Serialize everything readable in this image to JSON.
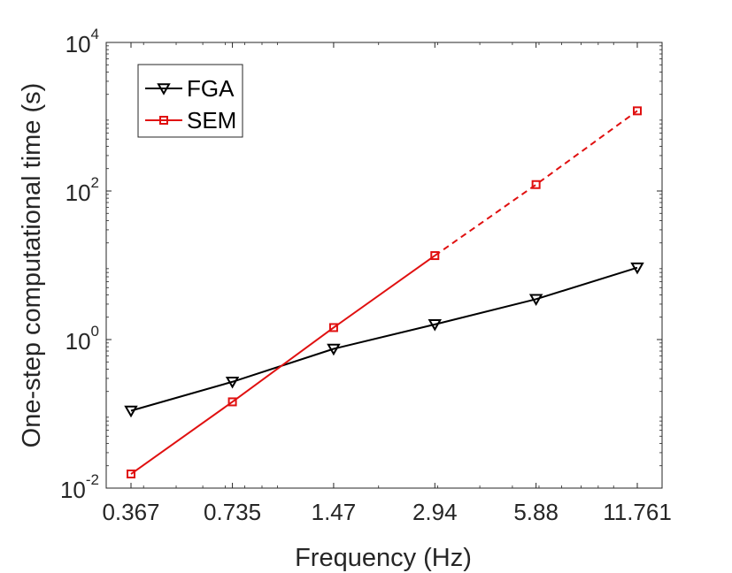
{
  "chart_data": {
    "type": "line",
    "yscale": "log",
    "xscale": "log",
    "xlabel": "Frequency (Hz)",
    "ylabel": "One-step computational time (s)",
    "xlim": [
      0.367,
      11.761
    ],
    "ylim": [
      0.01,
      10000
    ],
    "x_tick_labels": [
      "0.367",
      "0.735",
      "1.47",
      "2.94",
      "5.88",
      "11.761"
    ],
    "y_ticks": [
      {
        "value": 0.01,
        "base": "10",
        "exponent": "-2"
      },
      {
        "value": 1,
        "base": "10",
        "exponent": "0"
      },
      {
        "value": 100,
        "base": "10",
        "exponent": "2"
      },
      {
        "value": 10000,
        "base": "10",
        "exponent": "4"
      }
    ],
    "legend_position": "top-left",
    "series": [
      {
        "name": "FGA",
        "color": "#000000",
        "marker": "triangle-down",
        "x": [
          0.367,
          0.735,
          1.47,
          2.94,
          5.88,
          11.761
        ],
        "values": [
          0.11,
          0.27,
          0.75,
          1.6,
          3.5,
          9.3
        ],
        "dashed_from_index": null
      },
      {
        "name": "SEM",
        "color": "#e01010",
        "marker": "square",
        "x": [
          0.367,
          0.735,
          1.47,
          2.94,
          5.88,
          11.761
        ],
        "values": [
          0.0155,
          0.145,
          1.45,
          13.5,
          122,
          1200
        ],
        "dashed_from_index": 3
      }
    ]
  }
}
